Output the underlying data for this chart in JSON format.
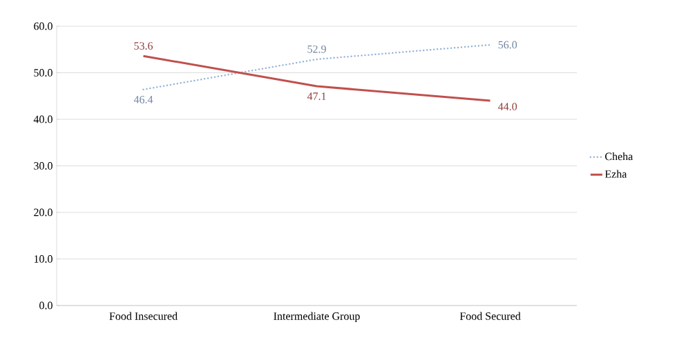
{
  "chart_data": {
    "type": "line",
    "categories": [
      "Food Insecured",
      "Intermediate Group",
      "Food Secured"
    ],
    "series": [
      {
        "name": "Cheha",
        "color": "#95b3d7",
        "values": [
          46.4,
          52.9,
          56.0
        ],
        "value_labels": [
          "46.4",
          "52.9",
          "56.0"
        ],
        "line_style": "dotted"
      },
      {
        "name": "Ezha",
        "color": "#c0504d",
        "values": [
          53.6,
          47.1,
          44.0
        ],
        "value_labels": [
          "53.6",
          "47.1",
          "44.0"
        ],
        "line_style": "solid"
      }
    ],
    "ylim": [
      0,
      60
    ],
    "yticks": [
      {
        "value": 0,
        "label": "0.0"
      },
      {
        "value": 10,
        "label": "10.0"
      },
      {
        "value": 20,
        "label": "20.0"
      },
      {
        "value": 30,
        "label": "30.0"
      },
      {
        "value": 40,
        "label": "40.0"
      },
      {
        "value": 50,
        "label": "50.0"
      },
      {
        "value": 60,
        "label": "60.0"
      }
    ],
    "grid": "y",
    "legend": "right",
    "marker": "none"
  }
}
